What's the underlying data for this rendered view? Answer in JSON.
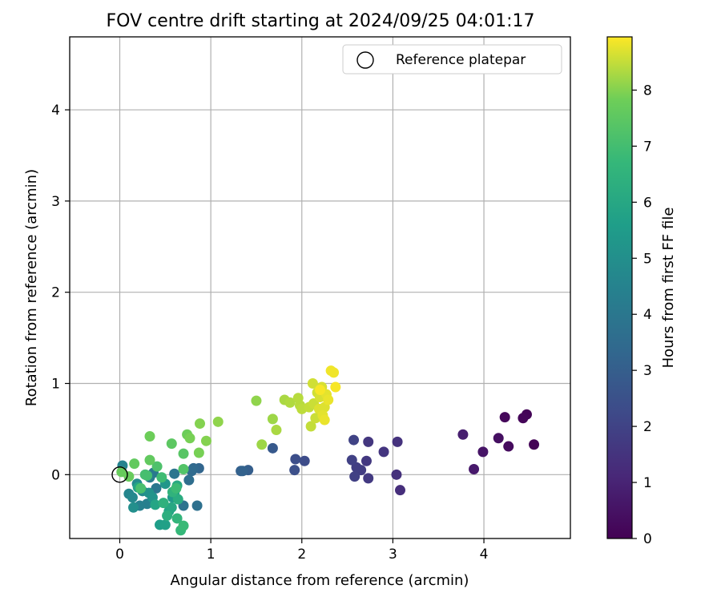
{
  "chart_data": {
    "type": "scatter",
    "title": "FOV centre drift starting at 2024/09/25 04:01:17",
    "xlabel": "Angular distance from reference (arcmin)",
    "ylabel": "Rotation from reference (arcmin)",
    "xlim": [
      -0.55,
      4.95
    ],
    "ylim": [
      -0.7,
      4.8
    ],
    "xticks": [
      0,
      1,
      2,
      3,
      4
    ],
    "yticks": [
      0,
      1,
      2,
      3,
      4
    ],
    "grid": true,
    "legend": {
      "label": "Reference platepar",
      "placement": "top-right"
    },
    "reference_point": {
      "x": 0,
      "y": 0
    },
    "colorbar": {
      "label": "Hours from first FF file",
      "colormap": "viridis",
      "range": [
        0,
        8.95
      ],
      "ticks": [
        0,
        1,
        2,
        3,
        4,
        5,
        6,
        7,
        8
      ]
    },
    "points": [
      {
        "x": 4.55,
        "y": 0.33,
        "c": 0.05
      },
      {
        "x": 4.47,
        "y": 0.66,
        "c": 0.1
      },
      {
        "x": 4.43,
        "y": 0.62,
        "c": 0.15
      },
      {
        "x": 4.23,
        "y": 0.63,
        "c": 0.2
      },
      {
        "x": 4.27,
        "y": 0.31,
        "c": 0.3
      },
      {
        "x": 4.16,
        "y": 0.4,
        "c": 0.4
      },
      {
        "x": 3.99,
        "y": 0.25,
        "c": 0.55
      },
      {
        "x": 3.89,
        "y": 0.06,
        "c": 0.7
      },
      {
        "x": 3.77,
        "y": 0.44,
        "c": 0.85
      },
      {
        "x": 3.08,
        "y": -0.17,
        "c": 1.3
      },
      {
        "x": 3.04,
        "y": 0.0,
        "c": 1.4
      },
      {
        "x": 3.05,
        "y": 0.36,
        "c": 1.45
      },
      {
        "x": 2.9,
        "y": 0.25,
        "c": 1.55
      },
      {
        "x": 2.73,
        "y": 0.36,
        "c": 1.6
      },
      {
        "x": 2.71,
        "y": 0.15,
        "c": 1.65
      },
      {
        "x": 2.73,
        "y": -0.04,
        "c": 1.7
      },
      {
        "x": 2.65,
        "y": 0.05,
        "c": 1.8
      },
      {
        "x": 2.6,
        "y": 0.08,
        "c": 1.85
      },
      {
        "x": 2.58,
        "y": -0.02,
        "c": 1.9
      },
      {
        "x": 2.55,
        "y": 0.16,
        "c": 1.95
      },
      {
        "x": 2.57,
        "y": 0.38,
        "c": 2.0
      },
      {
        "x": 2.03,
        "y": 0.15,
        "c": 2.3
      },
      {
        "x": 1.93,
        "y": 0.17,
        "c": 2.4
      },
      {
        "x": 1.92,
        "y": 0.05,
        "c": 2.45
      },
      {
        "x": 1.68,
        "y": 0.29,
        "c": 2.8
      },
      {
        "x": 1.41,
        "y": 0.05,
        "c": 3.0
      },
      {
        "x": 1.33,
        "y": 0.04,
        "c": 3.1
      },
      {
        "x": 1.35,
        "y": 0.04,
        "c": 3.15
      },
      {
        "x": 0.87,
        "y": 0.07,
        "c": 3.3
      },
      {
        "x": 0.81,
        "y": 0.07,
        "c": 3.4
      },
      {
        "x": 0.79,
        "y": 0.04,
        "c": 3.5
      },
      {
        "x": 0.76,
        "y": -0.06,
        "c": 3.6
      },
      {
        "x": 0.85,
        "y": -0.34,
        "c": 3.7
      },
      {
        "x": 0.7,
        "y": -0.34,
        "c": 3.8
      },
      {
        "x": 0.6,
        "y": 0.01,
        "c": 3.9
      },
      {
        "x": 0.4,
        "y": -0.15,
        "c": 4.0
      },
      {
        "x": 0.37,
        "y": 0.02,
        "c": 4.1
      },
      {
        "x": 0.33,
        "y": -0.03,
        "c": 4.2
      },
      {
        "x": 0.28,
        "y": 0.0,
        "c": 4.25
      },
      {
        "x": 0.36,
        "y": -0.3,
        "c": 4.3
      },
      {
        "x": 0.3,
        "y": -0.32,
        "c": 4.35
      },
      {
        "x": 0.22,
        "y": -0.34,
        "c": 4.4
      },
      {
        "x": 0.03,
        "y": 0.1,
        "c": 4.5
      },
      {
        "x": 0.1,
        "y": -0.21,
        "c": 4.6
      },
      {
        "x": 0.14,
        "y": -0.25,
        "c": 4.7
      },
      {
        "x": 0.19,
        "y": -0.1,
        "c": 4.8
      },
      {
        "x": 0.25,
        "y": -0.18,
        "c": 4.85
      },
      {
        "x": 0.15,
        "y": -0.36,
        "c": 5.0
      },
      {
        "x": 0.32,
        "y": -0.2,
        "c": 5.1
      },
      {
        "x": 0.36,
        "y": -0.25,
        "c": 5.2
      },
      {
        "x": 0.5,
        "y": -0.1,
        "c": 5.3
      },
      {
        "x": 0.58,
        "y": -0.25,
        "c": 5.4
      },
      {
        "x": 0.6,
        "y": -0.2,
        "c": 5.5
      },
      {
        "x": 0.44,
        "y": -0.55,
        "c": 5.6
      },
      {
        "x": 0.5,
        "y": -0.55,
        "c": 5.7
      },
      {
        "x": 0.54,
        "y": -0.4,
        "c": 5.8
      },
      {
        "x": 0.2,
        "y": -0.14,
        "c": 5.85
      },
      {
        "x": 0.39,
        "y": -0.33,
        "c": 5.9
      },
      {
        "x": 0.57,
        "y": -0.36,
        "c": 6.0
      },
      {
        "x": 0.63,
        "y": -0.12,
        "c": 6.1
      },
      {
        "x": 0.64,
        "y": -0.27,
        "c": 6.2
      },
      {
        "x": 0.52,
        "y": -0.45,
        "c": 6.3
      },
      {
        "x": 0.48,
        "y": -0.31,
        "c": 6.4
      },
      {
        "x": 0.58,
        "y": -0.19,
        "c": 6.5
      },
      {
        "x": 0.63,
        "y": -0.48,
        "c": 6.6
      },
      {
        "x": 0.67,
        "y": -0.61,
        "c": 6.7
      },
      {
        "x": 0.7,
        "y": -0.56,
        "c": 6.8
      },
      {
        "x": 0.62,
        "y": -0.15,
        "c": 6.85
      },
      {
        "x": 0.46,
        "y": -0.03,
        "c": 6.9
      },
      {
        "x": 0.3,
        "y": -0.01,
        "c": 7.0
      },
      {
        "x": 0.28,
        "y": 0.0,
        "c": 7.05
      },
      {
        "x": 0.23,
        "y": -0.15,
        "c": 7.1
      },
      {
        "x": 0.41,
        "y": 0.09,
        "c": 7.2
      },
      {
        "x": 0.7,
        "y": 0.06,
        "c": 7.3
      },
      {
        "x": 0.7,
        "y": 0.23,
        "c": 7.4
      },
      {
        "x": 0.57,
        "y": 0.34,
        "c": 7.5
      },
      {
        "x": 0.33,
        "y": 0.16,
        "c": 7.6
      },
      {
        "x": 0.16,
        "y": 0.12,
        "c": 7.6
      },
      {
        "x": 0.1,
        "y": -0.02,
        "c": 7.7
      },
      {
        "x": 0.02,
        "y": 0.03,
        "c": 7.7
      },
      {
        "x": 0.33,
        "y": 0.42,
        "c": 7.8
      },
      {
        "x": 0.74,
        "y": 0.44,
        "c": 7.8
      },
      {
        "x": 0.77,
        "y": 0.4,
        "c": 7.9
      },
      {
        "x": 0.87,
        "y": 0.24,
        "c": 7.9
      },
      {
        "x": 0.95,
        "y": 0.37,
        "c": 8.0
      },
      {
        "x": 0.88,
        "y": 0.56,
        "c": 8.0
      },
      {
        "x": 1.08,
        "y": 0.58,
        "c": 8.1
      },
      {
        "x": 1.5,
        "y": 0.81,
        "c": 8.1
      },
      {
        "x": 1.56,
        "y": 0.33,
        "c": 8.2
      },
      {
        "x": 1.68,
        "y": 0.61,
        "c": 8.2
      },
      {
        "x": 1.72,
        "y": 0.49,
        "c": 8.3
      },
      {
        "x": 1.81,
        "y": 0.82,
        "c": 8.3
      },
      {
        "x": 1.87,
        "y": 0.79,
        "c": 8.35
      },
      {
        "x": 1.96,
        "y": 0.84,
        "c": 8.4
      },
      {
        "x": 1.98,
        "y": 0.76,
        "c": 8.4
      },
      {
        "x": 2.0,
        "y": 0.72,
        "c": 8.45
      },
      {
        "x": 2.08,
        "y": 0.74,
        "c": 8.5
      },
      {
        "x": 2.1,
        "y": 0.53,
        "c": 8.5
      },
      {
        "x": 2.13,
        "y": 0.78,
        "c": 8.55
      },
      {
        "x": 2.15,
        "y": 0.62,
        "c": 8.55
      },
      {
        "x": 2.12,
        "y": 1.0,
        "c": 8.6
      },
      {
        "x": 2.17,
        "y": 0.9,
        "c": 8.6
      },
      {
        "x": 2.2,
        "y": 0.85,
        "c": 8.65
      },
      {
        "x": 2.22,
        "y": 0.96,
        "c": 8.65
      },
      {
        "x": 2.19,
        "y": 0.72,
        "c": 8.7
      },
      {
        "x": 2.25,
        "y": 0.74,
        "c": 8.7
      },
      {
        "x": 2.27,
        "y": 0.88,
        "c": 8.75
      },
      {
        "x": 2.23,
        "y": 0.65,
        "c": 8.75
      },
      {
        "x": 2.25,
        "y": 0.6,
        "c": 8.8
      },
      {
        "x": 2.29,
        "y": 0.82,
        "c": 8.8
      },
      {
        "x": 2.32,
        "y": 1.14,
        "c": 8.85
      },
      {
        "x": 2.35,
        "y": 1.12,
        "c": 8.85
      },
      {
        "x": 2.37,
        "y": 0.96,
        "c": 8.9
      },
      {
        "x": 2.2,
        "y": 0.93,
        "c": 8.9
      }
    ]
  }
}
